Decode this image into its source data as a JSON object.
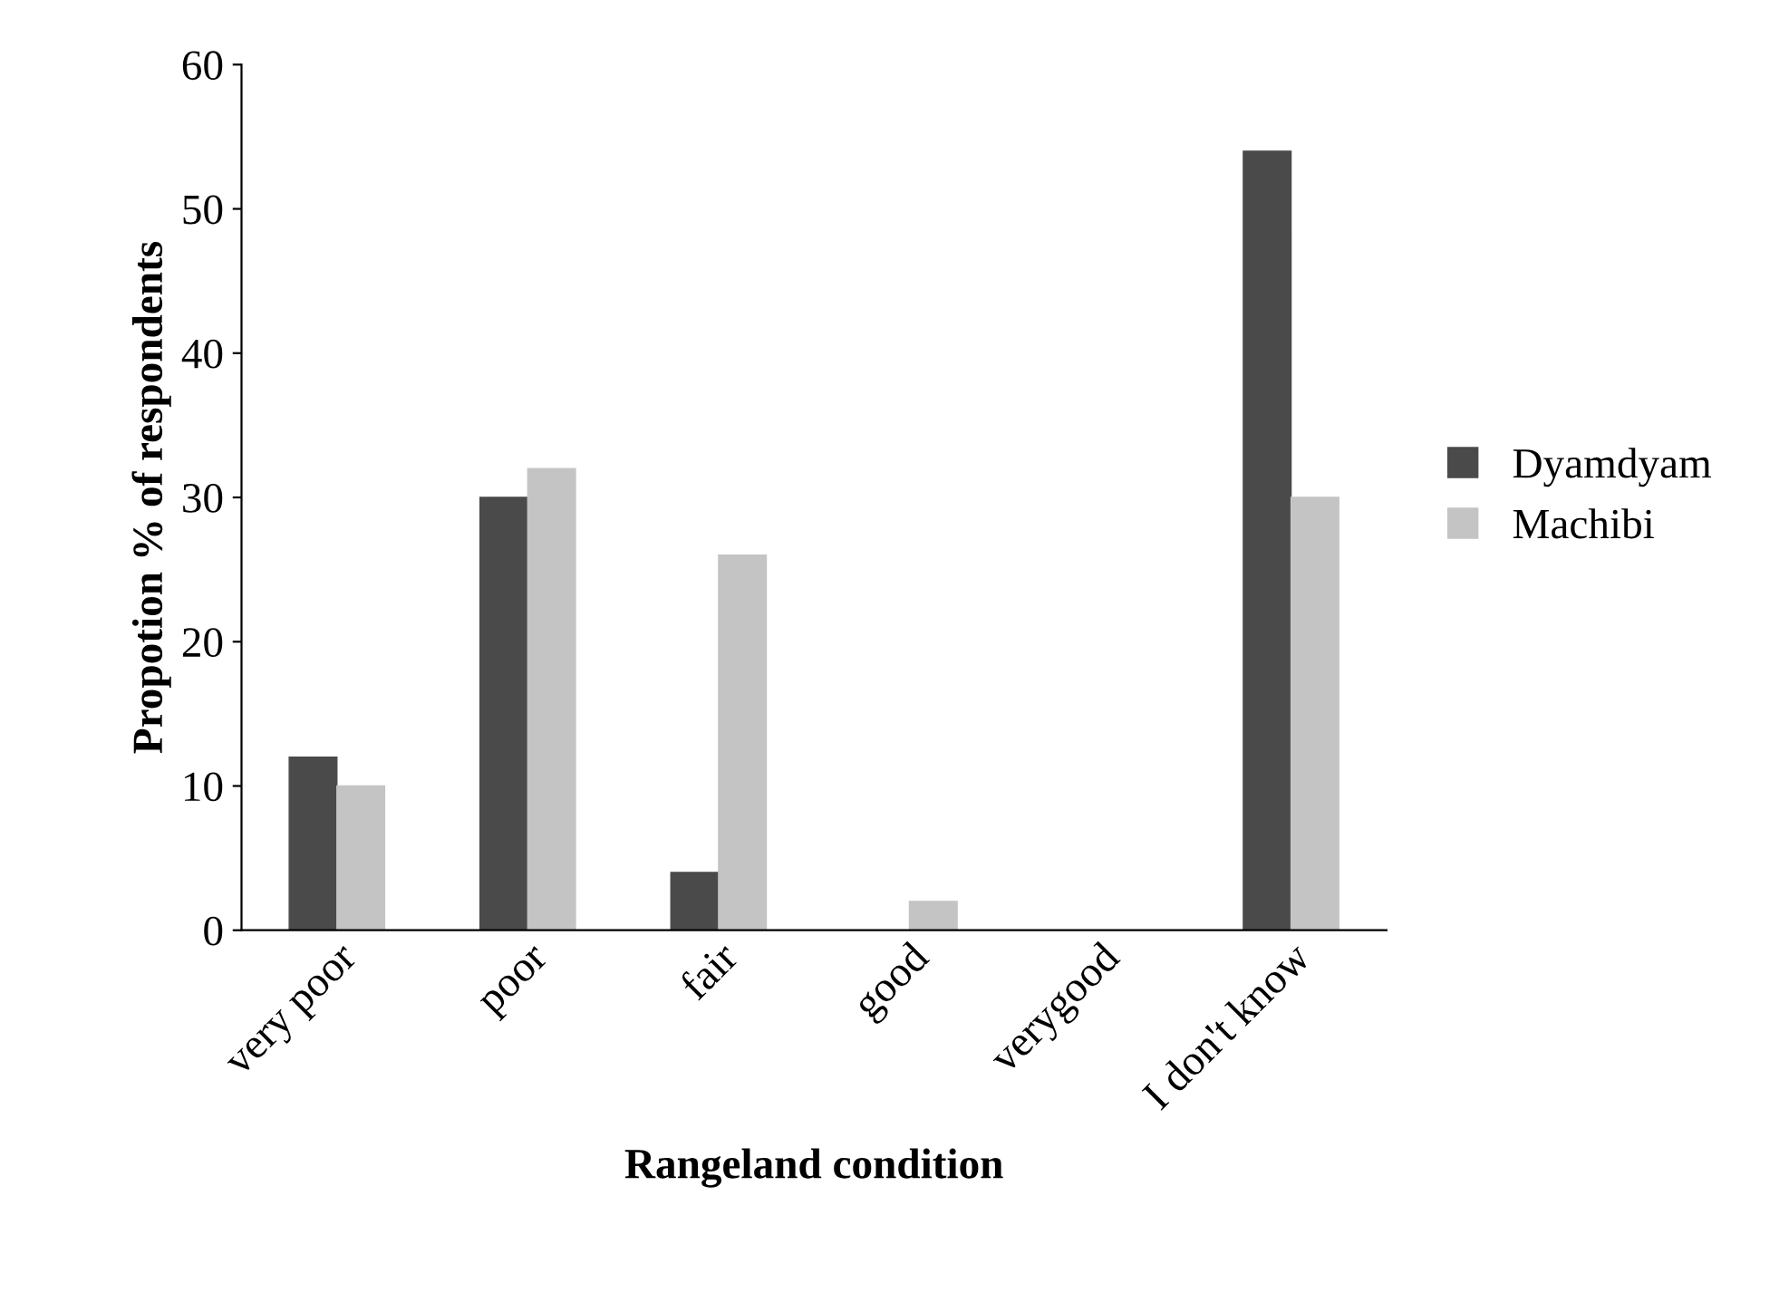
{
  "chart_data": {
    "type": "bar",
    "xlabel": "Rangeland condition",
    "ylabel": "Propotion % of respondents",
    "categories": [
      "very poor",
      "poor",
      "fair",
      "good",
      "verygood",
      "I don't know"
    ],
    "series": [
      {
        "name": "Dyamdyam",
        "color": "#4a4a4a",
        "values": [
          12,
          30,
          4,
          0,
          0,
          54
        ]
      },
      {
        "name": "Machibi",
        "color": "#c4c4c4",
        "values": [
          10,
          32,
          26,
          2,
          0,
          30
        ]
      }
    ],
    "ylim": [
      0,
      60
    ],
    "yticks": [
      0,
      10,
      20,
      30,
      40,
      50,
      60
    ],
    "grid": false,
    "legend": "right"
  }
}
